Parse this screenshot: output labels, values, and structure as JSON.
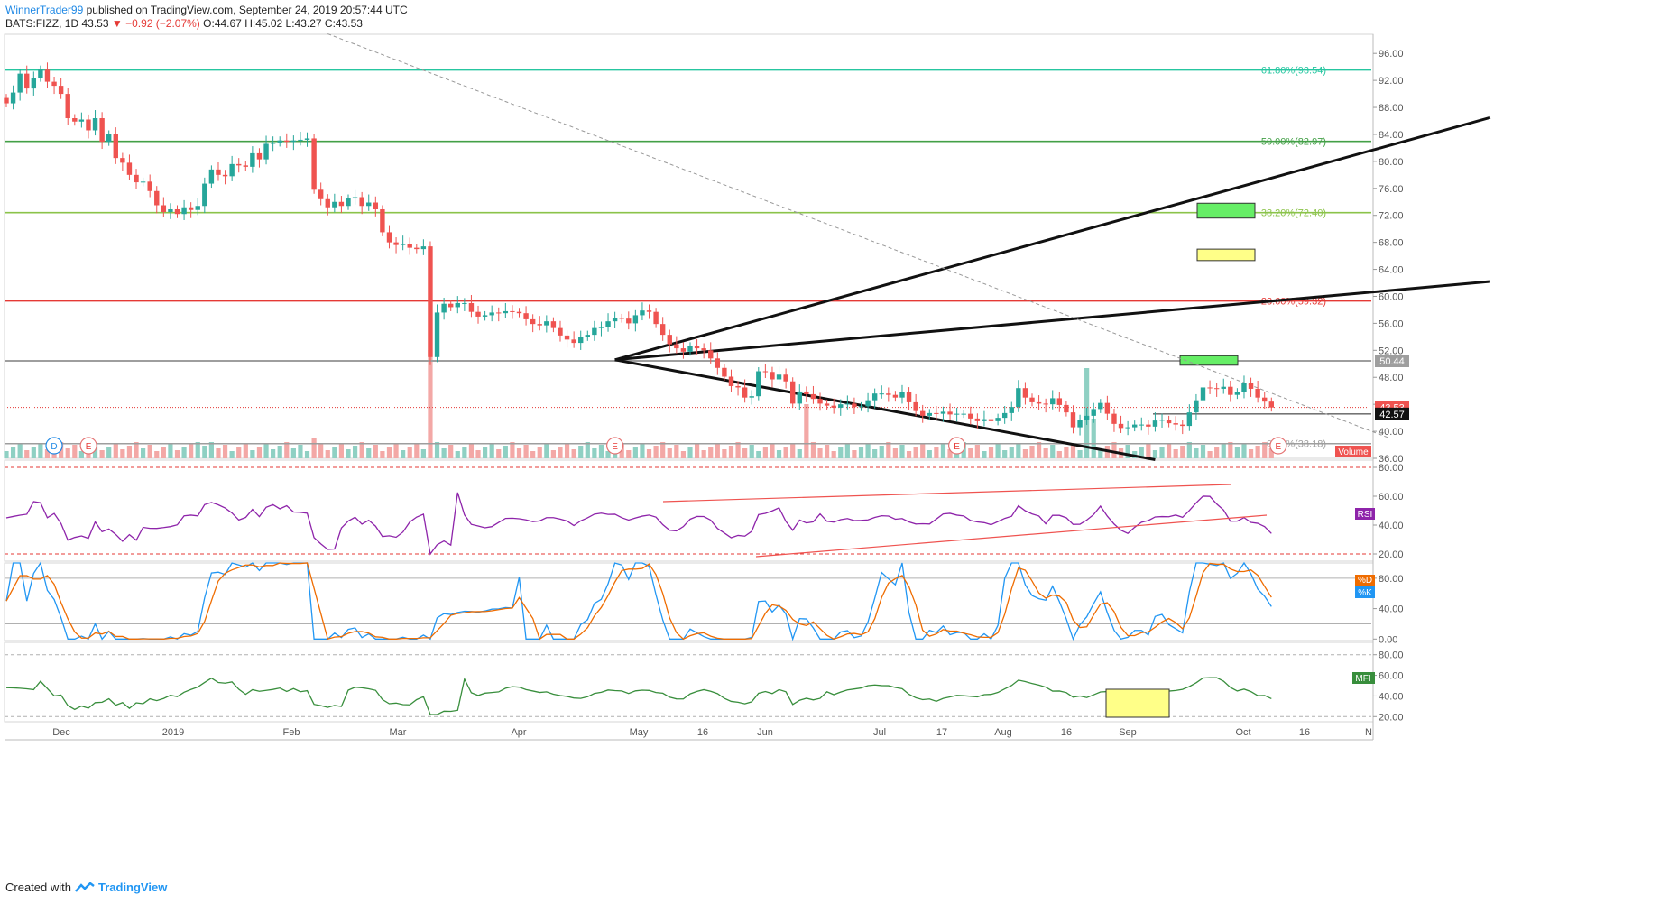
{
  "header": {
    "author": "WinnerTrader99",
    "published_text": "published on TradingView.com, September 24, 2019 20:57:44 UTC",
    "symbol": "BATS:FIZZ, 1D",
    "last": "43.53",
    "change": "−0.92 (−2.07%)",
    "ohlc": "O:44.67 H:45.02 L:43.27 C:43.53"
  },
  "footer": {
    "created_with": "Created with",
    "brand": "TradingView"
  },
  "chart_data": {
    "type": "candlestick",
    "symbol": "BATS:FIZZ",
    "interval": "1D",
    "ylim": [
      36,
      96
    ],
    "y_ticks": [
      "96.00",
      "92.00",
      "88.00",
      "84.00",
      "80.00",
      "76.00",
      "72.00",
      "68.00",
      "64.00",
      "60.00",
      "56.00",
      "52.00",
      "48.00",
      "44.00",
      "40.00",
      "36.00"
    ],
    "x_ticks": [
      "Dec",
      "2019",
      "Feb",
      "Mar",
      "Apr",
      "May",
      "16",
      "Jun",
      "Jul",
      "17",
      "Aug",
      "16",
      "Sep",
      "Oct",
      "16",
      "N"
    ],
    "price_labels": {
      "last": "43.53",
      "line": "42.57",
      "level": "50.44",
      "volume": "Volume"
    },
    "fib_levels": [
      {
        "label": "61.80%(93.54)",
        "value": 93.54,
        "color": "#26c6a0"
      },
      {
        "label": "50.00%(82.97)",
        "value": 82.97,
        "color": "#43a047"
      },
      {
        "label": "38.20%(72.40)",
        "value": 72.4,
        "color": "#8bc34a"
      },
      {
        "label": "23.60%(59.32)",
        "value": 59.32,
        "color": "#e53935"
      },
      {
        "label": "0.00%(38.18)",
        "value": 38.18,
        "color": "#9e9e9e"
      }
    ],
    "boxes": [
      {
        "y_low": 71.6,
        "y_high": 73.8,
        "color": "#66ee66"
      },
      {
        "y_low": 65.3,
        "y_high": 67.0,
        "color": "#ffff88"
      },
      {
        "y_low": 49.8,
        "y_high": 51.2,
        "color": "#66ee66"
      }
    ],
    "closes": [
      88.6,
      90.2,
      93.0,
      90.8,
      92.4,
      93.6,
      91.8,
      91.2,
      90.0,
      86.4,
      85.9,
      86.2,
      84.6,
      86.4,
      82.9,
      84.0,
      80.5,
      79.8,
      78.0,
      76.9,
      77.0,
      75.6,
      73.5,
      72.5,
      72.9,
      72.2,
      73.2,
      72.8,
      73.4,
      76.7,
      78.8,
      78.0,
      77.8,
      79.6,
      79.4,
      79.2,
      81.2,
      80.3,
      82.6,
      82.8,
      83.1,
      82.9,
      83.1,
      83.2,
      83.4,
      75.8,
      74.4,
      73.2,
      74.0,
      73.4,
      74.5,
      74.7,
      73.4,
      73.9,
      72.9,
      69.5,
      68.0,
      67.6,
      67.8,
      67.2,
      67.0,
      67.4,
      51.0,
      57.6,
      58.9,
      58.4,
      59.0,
      59.0,
      57.7,
      57.0,
      57.2,
      57.6,
      57.5,
      57.8,
      57.7,
      57.5,
      56.6,
      55.9,
      55.7,
      56.3,
      55.3,
      54.2,
      53.6,
      53.1,
      54.0,
      54.3,
      55.3,
      55.5,
      56.3,
      56.8,
      56.7,
      56.0,
      57.2,
      57.9,
      57.7,
      55.9,
      54.3,
      52.9,
      52.3,
      51.8,
      52.6,
      52.3,
      52.0,
      50.8,
      49.4,
      48.1,
      46.7,
      46.5,
      45.0,
      45.2,
      48.9,
      48.8,
      47.7,
      48.4,
      47.4,
      44.1,
      45.9,
      45.5,
      44.8,
      44.1,
      43.8,
      43.5,
      44.0,
      44.1,
      43.6,
      43.7,
      44.6,
      45.6,
      45.6,
      45.4,
      45.0,
      45.8,
      44.3,
      43.0,
      42.3,
      42.7,
      42.6,
      42.9,
      42.5,
      42.6,
      42.6,
      41.9,
      41.5,
      41.8,
      41.5,
      42.0,
      42.7,
      43.6,
      46.4,
      45.0,
      44.3,
      44.1,
      44.0,
      44.9,
      43.9,
      42.8,
      40.6,
      41.7,
      42.3,
      43.3,
      44.2,
      42.6,
      41.1,
      40.5,
      40.6,
      41.0,
      41.0,
      40.7,
      41.6,
      41.7,
      41.2,
      41.0,
      40.8,
      42.8,
      44.6,
      46.5,
      46.4,
      46.3,
      46.6,
      45.4,
      45.8,
      47.2,
      46.3,
      45.0,
      44.4,
      43.53
    ],
    "trendlines": [
      {
        "name": "upper",
        "from": {
          "x": 89,
          "y": 50.6
        },
        "to": {
          "x": 217,
          "y": 86.5
        }
      },
      {
        "name": "middle",
        "from": {
          "x": 89,
          "y": 50.6
        },
        "to": {
          "x": 217,
          "y": 62.2
        }
      },
      {
        "name": "lower",
        "from": {
          "x": 89,
          "y": 50.6
        },
        "to": {
          "x": 168,
          "y": 35.8
        }
      },
      {
        "name": "dashed",
        "from": {
          "x": 47,
          "y": 98.9
        },
        "to": {
          "x": 202,
          "y": 39.1
        }
      }
    ],
    "earnings_markers": [
      {
        "x": 9,
        "label": "D"
      },
      {
        "x": 14,
        "label": "E"
      },
      {
        "x": 89,
        "label": "E"
      },
      {
        "x": 139,
        "label": "E"
      },
      {
        "x": 186,
        "label": "E"
      }
    ],
    "panes": [
      {
        "name": "RSI",
        "label": "RSI",
        "ylim": [
          15,
          85
        ],
        "y_ticks": [
          "80.00",
          "60.00",
          "40.00",
          "20.00"
        ],
        "color": "#8e24aa",
        "levels": [
          80,
          20
        ]
      },
      {
        "name": "Stoch",
        "label_k": "%K",
        "label_d": "%D",
        "ylim": [
          -2,
          100
        ],
        "y_ticks": [
          "80.00",
          "40.00",
          "0.00"
        ],
        "colors": [
          "#2196f3",
          "#ef6c00"
        ],
        "levels": [
          80,
          20
        ]
      },
      {
        "name": "MFI",
        "label": "MFI",
        "ylim": [
          15,
          92
        ],
        "y_ticks": [
          "80.00",
          "60.00",
          "40.00",
          "20.00"
        ],
        "color": "#388e3c",
        "levels": [
          80,
          20
        ]
      }
    ]
  }
}
